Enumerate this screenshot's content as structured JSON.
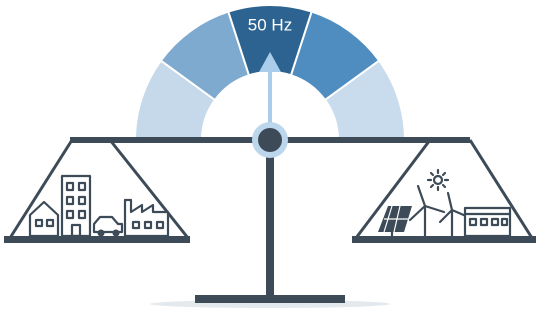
{
  "gauge": {
    "label": "50 Hz"
  }
}
